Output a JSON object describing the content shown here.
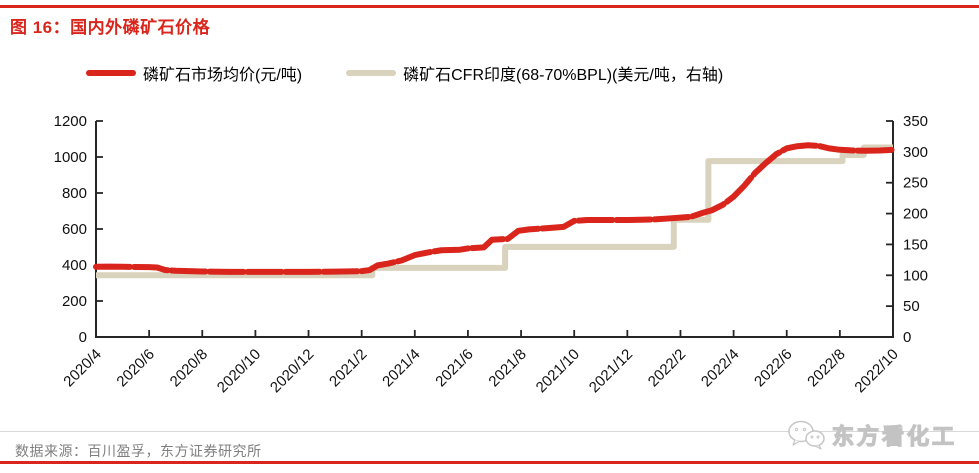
{
  "page": {
    "title": "图 16：国内外磷矿石价格",
    "source": "数据来源：百川盈孚，东方证券研究所",
    "watermark": "东方看化工",
    "colors": {
      "accent_red": "#d9251c",
      "series_beige": "#d9d2bc",
      "rule_gray": "#d9d9d9",
      "source_gray": "#7f7f7f",
      "axis_black": "#262626",
      "tick_text": "#111111"
    }
  },
  "legend": {
    "items": [
      {
        "label": "磷矿石市场均价(元/吨)",
        "color": "#d9251c"
      },
      {
        "label": "磷矿石CFR印度(68-70%BPL)(美元/吨，右轴)",
        "color": "#d9d2bc"
      }
    ]
  },
  "chart_data": {
    "type": "line",
    "title": "国内外磷矿石价格",
    "grid": false,
    "legend_position": "top",
    "x_axis": {
      "unit": "year/month",
      "start": "2020/4",
      "end": "2022/10",
      "tick_labels": [
        "2020/4",
        "2020/6",
        "2020/8",
        "2020/10",
        "2020/12",
        "2021/2",
        "2021/4",
        "2021/6",
        "2021/8",
        "2021/10",
        "2021/12",
        "2022/2",
        "2022/4",
        "2022/6",
        "2022/8",
        "2022/10"
      ]
    },
    "left_axis": {
      "label": "元/吨",
      "range": [
        0,
        1200
      ],
      "ticks": [
        0,
        200,
        400,
        600,
        800,
        1000,
        1200
      ]
    },
    "right_axis": {
      "label": "美元/吨",
      "range": [
        0,
        350
      ],
      "ticks": [
        0,
        50,
        100,
        150,
        200,
        250,
        300,
        350
      ]
    },
    "x_unit_note": "x = months after 2020/4 (0 = 2020/4, 30 = 2022/10)",
    "series": [
      {
        "name": "磷矿石市场均价(元/吨)",
        "axis": "left",
        "color": "#d9251c",
        "style": "line",
        "x": [
          0,
          0.5,
          1,
          1.5,
          2,
          2.3,
          2.6,
          3,
          3.5,
          4,
          5,
          6,
          7,
          8,
          9,
          10,
          10.3,
          10.6,
          11,
          11.5,
          12,
          12.5,
          13,
          13.7,
          14,
          14.6,
          14.9,
          15.5,
          15.9,
          16.3,
          17,
          17.6,
          18,
          18.5,
          19,
          20,
          21,
          21.5,
          22,
          22.4,
          22.8,
          23.2,
          23.6,
          24,
          24.4,
          24.8,
          25.2,
          25.6,
          26,
          26.4,
          26.8,
          27.2,
          27.6,
          28,
          28.5,
          29,
          29.5,
          30
        ],
        "values": [
          390,
          391,
          390,
          389,
          388,
          386,
          372,
          368,
          366,
          364,
          362,
          362,
          362,
          362,
          363,
          366,
          372,
          398,
          408,
          425,
          455,
          470,
          482,
          485,
          492,
          498,
          540,
          545,
          590,
          598,
          605,
          612,
          645,
          650,
          650,
          650,
          653,
          658,
          663,
          668,
          688,
          705,
          735,
          780,
          840,
          910,
          965,
          1015,
          1048,
          1060,
          1065,
          1062,
          1048,
          1040,
          1036,
          1035,
          1036,
          1040
        ]
      },
      {
        "name": "磷矿石CFR印度(68-70%BPL)(美元/吨，右轴)",
        "axis": "right",
        "color": "#d9d2bc",
        "style": "step-after",
        "x": [
          0,
          10.4,
          15.4,
          21.75,
          23.05,
          28.1,
          28.9
        ],
        "values": [
          100,
          112,
          146,
          190,
          285,
          295,
          307
        ]
      }
    ]
  }
}
